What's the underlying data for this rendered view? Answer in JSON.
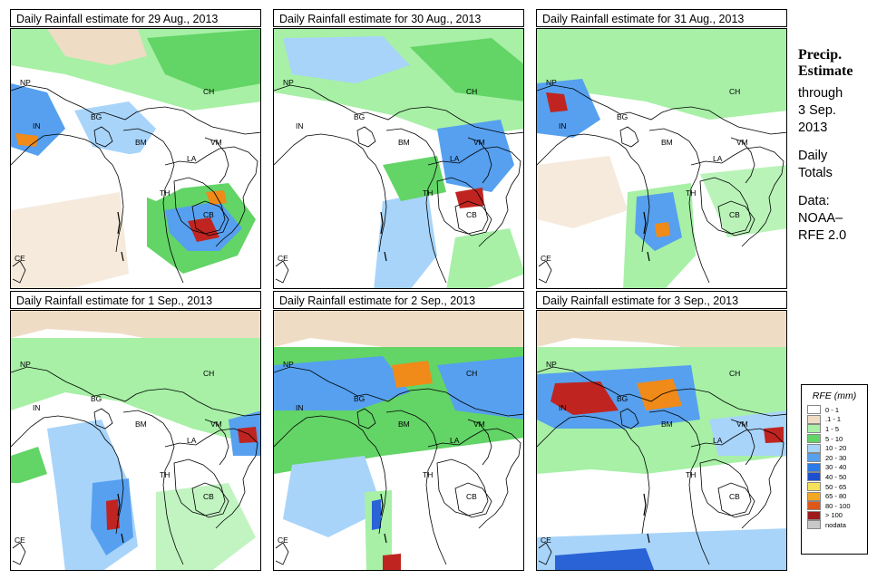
{
  "colors": {
    "land": "#ffffff",
    "border": "#000000",
    "light": "#efdcc5",
    "green_light": "#a7f0a6",
    "green": "#63d466",
    "blue_light": "#a8d4fa",
    "blue": "#56a0ef",
    "blue_dark": "#2a63d6",
    "orange": "#f08a18",
    "red": "#c02420"
  },
  "panels": [
    {
      "title": "Daily Rainfall estimate for  29 Aug., 2013"
    },
    {
      "title": "Daily Rainfall estimate for  30 Aug., 2013"
    },
    {
      "title": "Daily Rainfall estimate for  31 Aug., 2013"
    },
    {
      "title": "Daily Rainfall estimate for  1 Sep., 2013"
    },
    {
      "title": "Daily Rainfall estimate for  2 Sep., 2013"
    },
    {
      "title": "Daily Rainfall estimate for  3 Sep., 2013"
    }
  ],
  "map_labels": [
    "NP",
    "IN",
    "BG",
    "CH",
    "BM",
    "VM",
    "LA",
    "TH",
    "CB",
    "CE"
  ],
  "sidebar": {
    "heading_line1": "Precip.",
    "heading_line2": "Estimate",
    "through": "through",
    "date_line1": "3 Sep.",
    "date_line2": "2013",
    "daily_line1": "Daily",
    "daily_line2": "Totals",
    "data_line1": "Data:",
    "data_line2": "NOAA–",
    "data_line3": "RFE 2.0"
  },
  "legend": {
    "title": "RFE (mm)",
    "items": [
      {
        "label": "0 - 1",
        "color": "#ffffff"
      },
      {
        "label": ".1 - 1",
        "color": "#efdcc5"
      },
      {
        "label": "1 - 5",
        "color": "#a7f0a6"
      },
      {
        "label": "5 - 10",
        "color": "#63d466"
      },
      {
        "label": "10 - 20",
        "color": "#a8d4fa"
      },
      {
        "label": "20 - 30",
        "color": "#56a0ef"
      },
      {
        "label": "30 - 40",
        "color": "#2a7ae8"
      },
      {
        "label": "40 - 50",
        "color": "#1c4ed0"
      },
      {
        "label": "50 - 65",
        "color": "#f5e25a"
      },
      {
        "label": "65 - 80",
        "color": "#f5a623"
      },
      {
        "label": "80 - 100",
        "color": "#e0561a"
      },
      {
        "label": "> 100",
        "color": "#9e1b1b"
      },
      {
        "label": "nodata",
        "color": "#c8c8c8"
      }
    ]
  }
}
